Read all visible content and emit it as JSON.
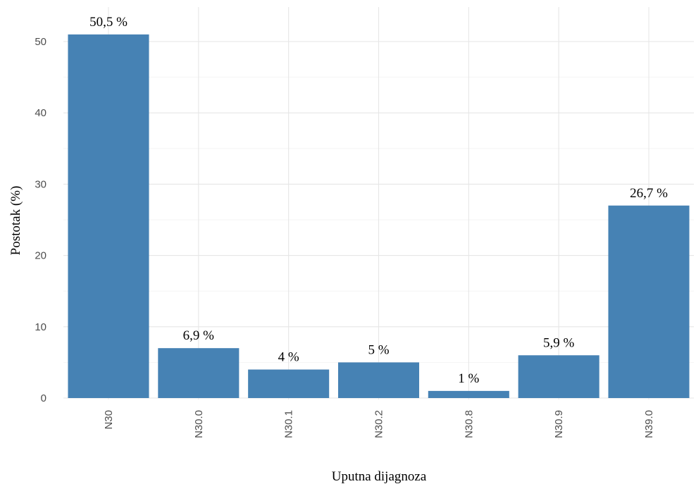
{
  "chart_data": {
    "type": "bar",
    "title": "",
    "xlabel": "Uputna dijagnoza",
    "ylabel": "Postotak (%)",
    "categories": [
      "N30",
      "N30.0",
      "N30.1",
      "N30.2",
      "N30.8",
      "N30.9",
      "N39.0"
    ],
    "values": [
      51.0,
      7.0,
      4.0,
      5.0,
      1.0,
      6.0,
      27.0
    ],
    "data_labels": [
      "50,5 %",
      "6,9 %",
      "4 %",
      "5 %",
      "1 %",
      "5,9 %",
      "26,7 %"
    ],
    "ylim": [
      0,
      54
    ],
    "yticks": [
      0,
      10,
      20,
      30,
      40,
      50
    ],
    "ytick_labels": [
      "0",
      "10",
      "20",
      "30",
      "40",
      "50"
    ],
    "grid": true,
    "legend": "none",
    "bar_color": "#4682b4"
  }
}
